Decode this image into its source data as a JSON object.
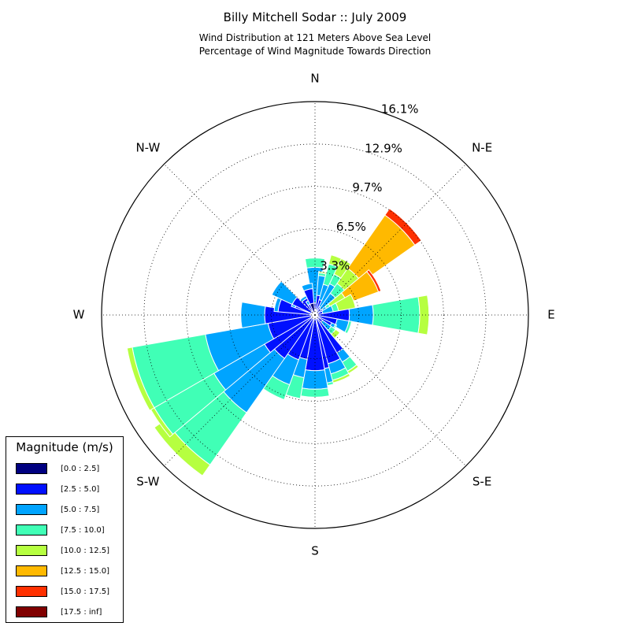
{
  "chart_data": {
    "type": "windrose",
    "title": "Billy Mitchell Sodar :: July 2009",
    "subtitle_lines": [
      "Wind Distribution at 121 Meters Above Sea Level",
      "Percentage of Wind Magnitude Towards Direction"
    ],
    "directions": [
      "N",
      "N-E",
      "E",
      "S-E",
      "S",
      "S-W",
      "W",
      "N-W"
    ],
    "radial_ticks": [
      "3.3%",
      "6.5%",
      "9.7%",
      "12.9%",
      "16.1%"
    ],
    "radial_tick_values": [
      3.3,
      6.5,
      9.7,
      12.9,
      16.1
    ],
    "r_max": 16.1,
    "grid": true,
    "legend_position": "lower-left",
    "legend_title": "Magnitude (m/s)",
    "bins": [
      {
        "label": "[0.0 : 2.5]",
        "color": "#000080"
      },
      {
        "label": "[2.5 : 5.0]",
        "color": "#0010ff"
      },
      {
        "label": "[5.0 : 7.5]",
        "color": "#00a4ff"
      },
      {
        "label": "[7.5 : 10.0]",
        "color": "#40ffb6"
      },
      {
        "label": "[10.0 : 12.5]",
        "color": "#b6ff40"
      },
      {
        "label": "[12.5 : 15.0]",
        "color": "#ffb900"
      },
      {
        "label": "[15.0 : 17.5]",
        "color": "#ff3000"
      },
      {
        "label": "[17.5 : inf]",
        "color": "#800000"
      }
    ],
    "sector_width_deg": 20,
    "sectors": [
      {
        "direction_deg": 0,
        "cumulative_percent": [
          0.0,
          0.9,
          3.6,
          4.3,
          4.3,
          4.3,
          4.3,
          4.3
        ]
      },
      {
        "direction_deg": 15,
        "cumulative_percent": [
          0.4,
          1.5,
          3.0,
          3.2,
          3.3,
          3.3,
          3.3,
          3.3
        ]
      },
      {
        "direction_deg": 25,
        "cumulative_percent": [
          0.2,
          1.2,
          2.4,
          4.0,
          4.7,
          4.7,
          4.7,
          4.7
        ]
      },
      {
        "direction_deg": 35,
        "cumulative_percent": [
          0.2,
          0.7,
          2.6,
          3.4,
          4.7,
          4.7,
          4.7,
          4.7
        ]
      },
      {
        "direction_deg": 45,
        "cumulative_percent": [
          0.2,
          0.6,
          2.0,
          2.9,
          4.3,
          9.2,
          9.8,
          9.8
        ]
      },
      {
        "direction_deg": 60,
        "cumulative_percent": [
          0.1,
          0.7,
          1.0,
          1.3,
          2.6,
          5.1,
          5.3,
          5.3
        ]
      },
      {
        "direction_deg": 70,
        "cumulative_percent": [
          0.1,
          0.6,
          1.4,
          1.8,
          3.1,
          3.1,
          3.1,
          3.1
        ]
      },
      {
        "direction_deg": 90,
        "cumulative_percent": [
          0.1,
          2.6,
          4.4,
          7.9,
          8.6,
          8.6,
          8.6,
          8.6
        ]
      },
      {
        "direction_deg": 110,
        "cumulative_percent": [
          0.1,
          1.7,
          2.6,
          2.8,
          2.8,
          2.8,
          2.8,
          2.8
        ]
      },
      {
        "direction_deg": 125,
        "cumulative_percent": [
          0.2,
          1.4,
          1.7,
          1.8,
          1.8,
          1.8,
          1.8,
          1.8
        ]
      },
      {
        "direction_deg": 135,
        "cumulative_percent": [
          0.2,
          0.7,
          1.5,
          1.9,
          2.3,
          2.3,
          2.3,
          2.3
        ]
      },
      {
        "direction_deg": 150,
        "cumulative_percent": [
          0.3,
          3.3,
          4.1,
          4.9,
          5.1,
          5.1,
          5.1,
          5.1
        ]
      },
      {
        "direction_deg": 160,
        "cumulative_percent": [
          0.3,
          3.8,
          4.6,
          5.1,
          5.3,
          5.3,
          5.3,
          5.3
        ]
      },
      {
        "direction_deg": 175,
        "cumulative_percent": [
          0.3,
          4.1,
          5.2,
          5.4,
          5.4,
          5.4,
          5.4,
          5.4
        ]
      },
      {
        "direction_deg": 180,
        "cumulative_percent": [
          0.3,
          4.2,
          5.6,
          6.2,
          6.2,
          6.2,
          6.2,
          6.2
        ]
      },
      {
        "direction_deg": 200,
        "cumulative_percent": [
          0.3,
          3.4,
          4.8,
          6.4,
          6.4,
          6.4,
          6.4,
          6.4
        ]
      },
      {
        "direction_deg": 210,
        "cumulative_percent": [
          0.3,
          3.6,
          5.6,
          6.8,
          6.8,
          6.8,
          6.8,
          6.8
        ]
      },
      {
        "direction_deg": 225,
        "cumulative_percent": [
          0.3,
          4.0,
          9.0,
          13.8,
          14.8,
          14.8,
          14.8,
          14.8
        ]
      },
      {
        "direction_deg": 240,
        "cumulative_percent": [
          0.3,
          4.4,
          8.8,
          14.0,
          14.3,
          14.3,
          14.3,
          14.3
        ]
      },
      {
        "direction_deg": 250,
        "cumulative_percent": [
          0.3,
          3.6,
          8.4,
          14.0,
          14.4,
          14.4,
          14.4,
          14.4
        ]
      },
      {
        "direction_deg": 270,
        "cumulative_percent": [
          0.3,
          3.8,
          5.6,
          5.6,
          5.6,
          5.6,
          5.6,
          5.6
        ]
      },
      {
        "direction_deg": 285,
        "cumulative_percent": [
          0.3,
          2.8,
          3.1,
          3.1,
          3.1,
          3.1,
          3.1,
          3.1
        ]
      },
      {
        "direction_deg": 300,
        "cumulative_percent": [
          0.3,
          1.6,
          1.9,
          1.9,
          1.9,
          1.9,
          1.9,
          1.9
        ]
      },
      {
        "direction_deg": 305,
        "cumulative_percent": [
          0.3,
          1.9,
          3.6,
          3.6,
          3.6,
          3.6,
          3.6,
          3.6
        ]
      },
      {
        "direction_deg": 325,
        "cumulative_percent": [
          0.3,
          1.4,
          1.6,
          1.6,
          1.6,
          1.6,
          1.6,
          1.6
        ]
      },
      {
        "direction_deg": 335,
        "cumulative_percent": [
          0.2,
          0.9,
          1.2,
          1.2,
          1.2,
          1.2,
          1.2,
          1.2
        ]
      },
      {
        "direction_deg": 345,
        "cumulative_percent": [
          0.9,
          2.0,
          2.4,
          2.4,
          2.4,
          2.4,
          2.4,
          2.4
        ]
      }
    ]
  }
}
